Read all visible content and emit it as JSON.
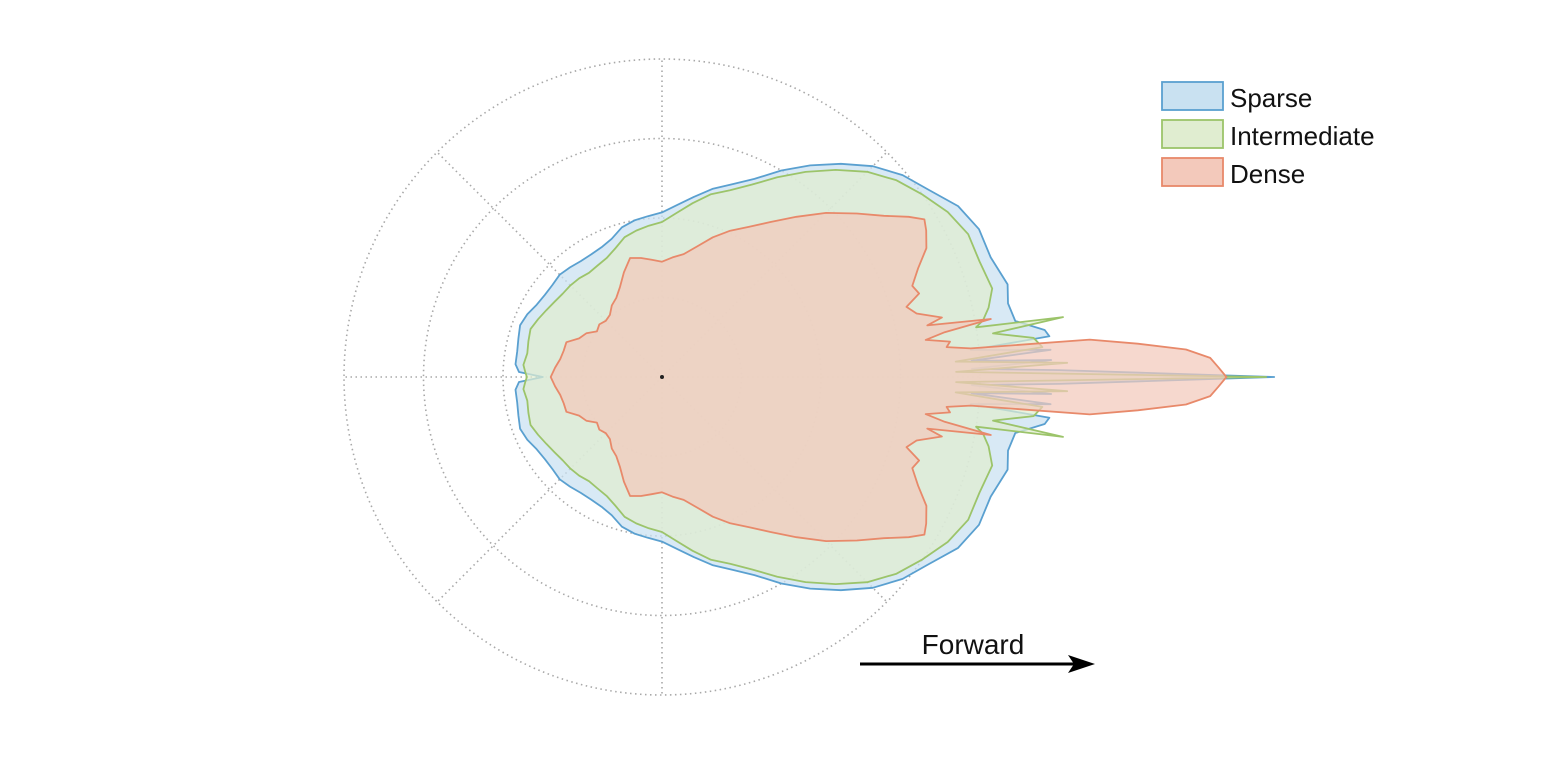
{
  "chart_data": {
    "type": "polar-area",
    "title": "",
    "annotation": "Forward",
    "angle_unit": "degrees",
    "angle_reference": "0 = forward (right), positive = counter-clockwise",
    "radial_range": [
      0,
      4
    ],
    "ring_values": [
      1,
      2,
      3,
      4
    ],
    "spoke_angles": [
      0,
      45,
      90,
      135,
      180,
      225,
      270,
      315
    ],
    "symmetric": true,
    "grid": "dotted",
    "legend_placement": "top-right",
    "series": [
      {
        "name": "Sparse",
        "color": "#5aa0d0",
        "fill": "#c9e1f1",
        "profile": [
          [
            0,
            7.7
          ],
          [
            1,
            5.0
          ],
          [
            1.5,
            3.9
          ],
          [
            2.5,
            4.9
          ],
          [
            3,
            3.9
          ],
          [
            4,
            4.9
          ],
          [
            5,
            3.9
          ],
          [
            6,
            4.9
          ],
          [
            7,
            4.85
          ],
          [
            9,
            4.5
          ],
          [
            12,
            4.45
          ],
          [
            15,
            4.5
          ],
          [
            20,
            4.4
          ],
          [
            25,
            4.4
          ],
          [
            30,
            4.3
          ],
          [
            35,
            4.1
          ],
          [
            40,
            3.95
          ],
          [
            45,
            3.75
          ],
          [
            50,
            3.5
          ],
          [
            55,
            3.25
          ],
          [
            60,
            3.0
          ],
          [
            65,
            2.75
          ],
          [
            70,
            2.58
          ],
          [
            75,
            2.45
          ],
          [
            80,
            2.3
          ],
          [
            85,
            2.17
          ],
          [
            90,
            2.07
          ],
          [
            95,
            2.03
          ],
          [
            100,
            2.0
          ],
          [
            105,
            1.95
          ],
          [
            110,
            1.85
          ],
          [
            115,
            1.8
          ],
          [
            120,
            1.78
          ],
          [
            125,
            1.78
          ],
          [
            130,
            1.8
          ],
          [
            135,
            1.82
          ],
          [
            140,
            1.8
          ],
          [
            145,
            1.8
          ],
          [
            150,
            1.82
          ],
          [
            155,
            1.87
          ],
          [
            160,
            1.9
          ],
          [
            165,
            1.87
          ],
          [
            170,
            1.85
          ],
          [
            175,
            1.85
          ],
          [
            178,
            1.8
          ],
          [
            180,
            1.5
          ]
        ]
      },
      {
        "name": "Intermediate",
        "color": "#9cc46a",
        "fill": "#e0edd0",
        "profile": [
          [
            0,
            7.6
          ],
          [
            1,
            3.7
          ],
          [
            2,
            5.1
          ],
          [
            3,
            3.7
          ],
          [
            4.5,
            4.8
          ],
          [
            6,
            4.7
          ],
          [
            7.5,
            4.2
          ],
          [
            8.5,
            5.1
          ],
          [
            9,
            4.0
          ],
          [
            10,
            4.1
          ],
          [
            12,
            4.2
          ],
          [
            15,
            4.3
          ],
          [
            20,
            4.25
          ],
          [
            25,
            4.25
          ],
          [
            30,
            4.15
          ],
          [
            35,
            4.0
          ],
          [
            40,
            3.85
          ],
          [
            45,
            3.65
          ],
          [
            50,
            3.4
          ],
          [
            55,
            3.15
          ],
          [
            60,
            2.9
          ],
          [
            65,
            2.67
          ],
          [
            70,
            2.5
          ],
          [
            75,
            2.38
          ],
          [
            80,
            2.22
          ],
          [
            85,
            2.07
          ],
          [
            90,
            1.95
          ],
          [
            95,
            1.91
          ],
          [
            100,
            1.87
          ],
          [
            105,
            1.82
          ],
          [
            110,
            1.72
          ],
          [
            115,
            1.65
          ],
          [
            120,
            1.62
          ],
          [
            125,
            1.6
          ],
          [
            130,
            1.62
          ],
          [
            135,
            1.63
          ],
          [
            140,
            1.63
          ],
          [
            145,
            1.65
          ],
          [
            150,
            1.68
          ],
          [
            155,
            1.72
          ],
          [
            160,
            1.76
          ],
          [
            165,
            1.74
          ],
          [
            170,
            1.72
          ],
          [
            175,
            1.75
          ],
          [
            178,
            1.72
          ],
          [
            180,
            1.7
          ]
        ]
      },
      {
        "name": "Dense",
        "color": "#e8896a",
        "fill": "#f3c9bb",
        "profile": [
          [
            0,
            7.1
          ],
          [
            1,
            7.0
          ],
          [
            2,
            6.9
          ],
          [
            3,
            6.6
          ],
          [
            4,
            6.0
          ],
          [
            5,
            5.4
          ],
          [
            5.3,
            3.9
          ],
          [
            6,
            3.6
          ],
          [
            7,
            3.65
          ],
          [
            8,
            3.35
          ],
          [
            9,
            3.6
          ],
          [
            10,
            4.2
          ],
          [
            11,
            3.4
          ],
          [
            12,
            3.6
          ],
          [
            14,
            3.3
          ],
          [
            16,
            3.2
          ],
          [
            18,
            3.4
          ],
          [
            20,
            3.35
          ],
          [
            23,
            3.5
          ],
          [
            26,
            3.7
          ],
          [
            29,
            3.8
          ],
          [
            31,
            3.85
          ],
          [
            33,
            3.7
          ],
          [
            36,
            3.45
          ],
          [
            40,
            3.2
          ],
          [
            45,
            2.92
          ],
          [
            50,
            2.63
          ],
          [
            55,
            2.38
          ],
          [
            60,
            2.18
          ],
          [
            65,
            2.03
          ],
          [
            70,
            1.87
          ],
          [
            75,
            1.7
          ],
          [
            80,
            1.57
          ],
          [
            85,
            1.51
          ],
          [
            90,
            1.45
          ],
          [
            95,
            1.48
          ],
          [
            100,
            1.52
          ],
          [
            105,
            1.55
          ],
          [
            110,
            1.4
          ],
          [
            115,
            1.25
          ],
          [
            120,
            1.15
          ],
          [
            125,
            1.1
          ],
          [
            130,
            1.02
          ],
          [
            135,
            1.0
          ],
          [
            140,
            1.03
          ],
          [
            145,
            1.0
          ],
          [
            150,
            1.1
          ],
          [
            155,
            1.15
          ],
          [
            160,
            1.28
          ],
          [
            165,
            1.28
          ],
          [
            170,
            1.3
          ],
          [
            175,
            1.35
          ],
          [
            180,
            1.4
          ]
        ]
      }
    ]
  }
}
